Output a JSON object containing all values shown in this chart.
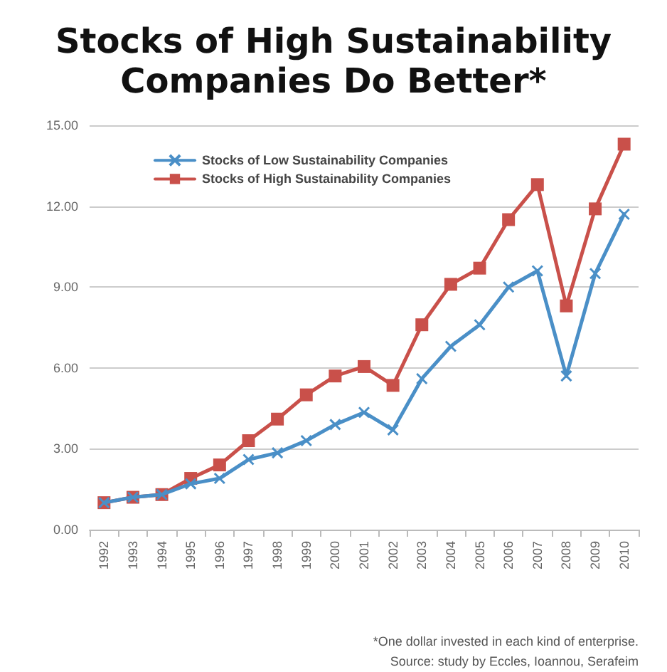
{
  "chart_data": {
    "type": "line",
    "title": "Stocks of High Sustainability\nCompanies Do Better*",
    "categories": [
      "1992",
      "1993",
      "1994",
      "1995",
      "1996",
      "1997",
      "1998",
      "1999",
      "2000",
      "2001",
      "2002",
      "2003",
      "2004",
      "2005",
      "2006",
      "2007",
      "2008",
      "2009",
      "2010"
    ],
    "series": [
      {
        "name": "Stocks of Low Sustainability Companies",
        "color": "#4a8fc7",
        "marker": "cross",
        "values": [
          1.0,
          1.2,
          1.3,
          1.7,
          1.9,
          2.6,
          2.85,
          3.3,
          3.9,
          4.35,
          3.7,
          5.6,
          6.8,
          7.6,
          9.0,
          9.6,
          5.7,
          9.5,
          11.7
        ]
      },
      {
        "name": "Stocks of High Sustainability Companies",
        "color": "#c9504a",
        "marker": "square",
        "values": [
          1.0,
          1.2,
          1.3,
          1.9,
          2.4,
          3.3,
          4.1,
          5.0,
          5.7,
          6.05,
          5.35,
          7.6,
          9.1,
          9.7,
          11.5,
          12.8,
          8.3,
          11.9,
          14.3
        ]
      }
    ],
    "ylim": [
      0,
      15
    ],
    "yticks": [
      {
        "value": 0,
        "label": "0.00"
      },
      {
        "value": 3,
        "label": "3.00"
      },
      {
        "value": 6,
        "label": "6.00"
      },
      {
        "value": 9,
        "label": "9.00"
      },
      {
        "value": 12,
        "label": "12.00"
      },
      {
        "value": 15,
        "label": "15.00"
      }
    ],
    "grid": "y",
    "legend": "top left",
    "annotations": [
      "*One dollar invested in each kind of enterprise.",
      "Source: study by Eccles, Ioannou, Serafeim"
    ]
  }
}
